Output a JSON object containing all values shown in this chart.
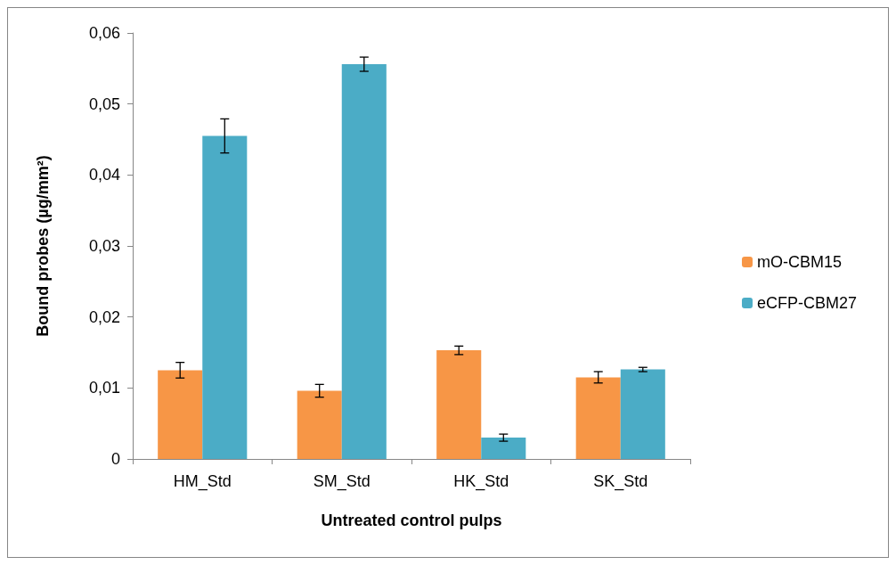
{
  "chart_data": {
    "type": "bar",
    "xlabel": "Untreated control pulps",
    "ylabel": "Bound probes (µg/mm²)",
    "categories": [
      "HM_Std",
      "SM_Std",
      "HK_Std",
      "SK_Std"
    ],
    "series": [
      {
        "name": "mO-CBM15",
        "color": "#f79646",
        "values": [
          0.0125,
          0.0096,
          0.0153,
          0.0115
        ],
        "errors": [
          0.0011,
          0.0009,
          0.0006,
          0.0008
        ]
      },
      {
        "name": "eCFP-CBM27",
        "color": "#4bacc6",
        "values": [
          0.0455,
          0.0556,
          0.003,
          0.0126
        ],
        "errors": [
          0.0024,
          0.001,
          0.0005,
          0.0003
        ]
      }
    ],
    "ylim": [
      0,
      0.06
    ],
    "yticks": [
      0,
      {
        "value": 0.01,
        "label": "0,01"
      },
      {
        "value": 0.02,
        "label": "0,02"
      },
      {
        "value": 0.03,
        "label": "0,03"
      },
      {
        "value": 0.04,
        "label": "0,04"
      },
      {
        "value": 0.05,
        "label": "0,05"
      },
      {
        "value": 0.06,
        "label": "0,06"
      }
    ],
    "grid": false,
    "legend": "right"
  }
}
